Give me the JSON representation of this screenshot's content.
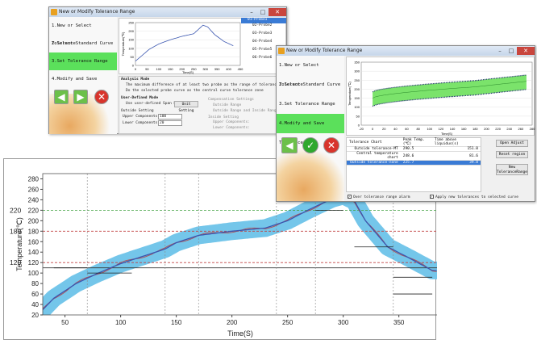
{
  "window1": {
    "title": "New or Modify Tolerance Range",
    "steps": [
      "1.New or Select Tolerance",
      "2.Select Standard Curve",
      "3.Set Tolerance Range",
      "4.Modify and Save Tolerance"
    ],
    "active_step": 2,
    "legend": [
      "01-Probe1",
      "02-Probe2",
      "03-Probe3",
      "04-Probe4",
      "05-Probe5",
      "06-Probe6"
    ],
    "plot_ylabel": "Temperature(℃)",
    "plot_xlabel": "Time(S)",
    "x_ticks": [
      "0",
      "50",
      "100",
      "150",
      "200",
      "250",
      "300",
      "350",
      "400",
      "450"
    ],
    "y_ticks": [
      "0",
      "50",
      "100",
      "150",
      "200",
      "250"
    ],
    "analysis_mode_title": "Analysis Mode",
    "radio1": "The maximum difference of at least two probe as the range of tolerance zone",
    "radio2": "Do the selected probe curve as the central curve tolerance zone",
    "user_defined_title": "User-Defined Mode",
    "use_user_defined": "Use user-defined Span Mode",
    "unit_setting": "Unit Setting",
    "outside_setting": "Outside Setting",
    "upper_label": "Upper Components:",
    "upper_value": "100",
    "lower_label": "Lower Components:",
    "lower_value": "20",
    "comp_settings": "Compensation Settings",
    "outside_range": "Outside Range",
    "outside_range_outside_range": "Outside Range and Inside Range",
    "inside_setting": "Inside Setting",
    "upper_comp2": "Upper Components:",
    "lower_comp2": "Lower Components:"
  },
  "window2": {
    "title": "New or Modify Tolerance Range",
    "steps": [
      "1.New or Select Tolerance",
      "2.Select Standard Curve",
      "3.Set Tolerance Range",
      "4.Modify and Save Tolerance"
    ],
    "plot_ylabel": "Temperature(℃)",
    "plot_xlabel": "Time(S)",
    "x_ticks": [
      "-20",
      "0",
      "20",
      "40",
      "60",
      "80",
      "100",
      "120",
      "140",
      "160",
      "180",
      "200",
      "220",
      "240",
      "260",
      "280"
    ],
    "y_ticks": [
      "0",
      "50",
      "100",
      "150",
      "200",
      "250",
      "300",
      "350"
    ],
    "table_headers": [
      "Tolerance Chart",
      "Peak Temp.(℃)",
      "Time above liquidus(s)"
    ],
    "table_rows": [
      [
        "Outside tolerance-MT",
        "290.5",
        "151.0"
      ],
      [
        "Central temperature chart",
        "248.6",
        "81.6"
      ],
      [
        "Outside tolerance-none",
        "225.7",
        "39.8"
      ]
    ],
    "btn_open_adjust": "Open Adjust",
    "btn_reset_region": "Reset region",
    "btn_new_tolerance": "New ToleranceRange",
    "check_alarm": "Over tolerance range alarm",
    "check_apply": "Apply new tolerances to selected curve"
  },
  "main_chart": {
    "xlabel": "Time(S)",
    "ylabel": "Temperature(℃)",
    "x_ticks": [
      "50",
      "100",
      "150",
      "200",
      "250",
      "300",
      "350"
    ],
    "y_ticks": [
      "20",
      "40",
      "60",
      "80",
      "100",
      "120",
      "140",
      "160",
      "180",
      "200",
      "220",
      "240",
      "260",
      "280"
    ],
    "side_labels": [
      "220",
      "180",
      "120"
    ]
  },
  "chart_data": {
    "type": "line",
    "x": [
      30,
      40,
      60,
      80,
      100,
      120,
      140,
      150,
      170,
      200,
      230,
      250,
      270,
      290,
      300,
      310,
      320,
      340,
      360,
      380
    ],
    "series": [
      {
        "values": [
          30,
          52,
          80,
          100,
          118,
          132,
          146,
          158,
          172,
          180,
          186,
          200,
          222,
          242,
          248,
          238,
          200,
          150,
          128,
          105
        ]
      }
    ],
    "xlim": [
      30,
      385
    ],
    "ylim": [
      20,
      290
    ],
    "xlabel": "Time(S)",
    "ylabel": "Temperature(℃)",
    "reference_lines": [
      220,
      180,
      120,
      110
    ]
  },
  "colors": {
    "tolerance_band": "#74c6ea",
    "curve": "#3a56b0",
    "green_step": "#5be05b",
    "red_ref": "#c04040",
    "green_ref": "#40a040"
  }
}
